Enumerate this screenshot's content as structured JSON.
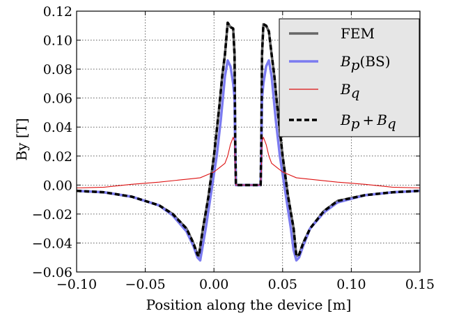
{
  "chart_data": {
    "type": "line",
    "xlabel": "Position along the device [m]",
    "ylabel": "By [T]",
    "xlim": [
      -0.1,
      0.15
    ],
    "ylim": [
      -0.06,
      0.12
    ],
    "x_ticks": [
      "−0.10",
      "−0.05",
      "0.00",
      "0.05",
      "0.10",
      "0.15"
    ],
    "y_ticks": [
      "−0.06",
      "−0.04",
      "−0.02",
      "0.00",
      "0.02",
      "0.04",
      "0.06",
      "0.08",
      "0.10",
      "0.12"
    ],
    "grid": true,
    "legend_position": "top-right",
    "legend": {
      "fem": "FEM",
      "bp_main": "B",
      "bp_sub": "p",
      "bp_suffix": "(BS)",
      "bq_main": "B",
      "bq_sub": "q",
      "sum_b1": "B",
      "sum_sub1": "p",
      "sum_plus": "+",
      "sum_b2": "B",
      "sum_sub2": "q"
    },
    "series": [
      {
        "key": "fem",
        "color": "#666666",
        "x": [
          -0.1,
          -0.08,
          -0.06,
          -0.04,
          -0.03,
          -0.02,
          -0.015,
          -0.012,
          -0.011,
          -0.008,
          -0.004,
          0.0,
          0.004,
          0.006,
          0.008,
          0.01,
          0.012,
          0.014,
          0.015,
          0.0155,
          0.016,
          0.034,
          0.0345,
          0.035,
          0.036,
          0.038,
          0.04,
          0.042,
          0.044,
          0.046,
          0.05,
          0.054,
          0.058,
          0.06,
          0.062,
          0.065,
          0.07,
          0.08,
          0.09,
          0.11,
          0.13,
          0.15
        ],
        "y": [
          -0.004,
          -0.005,
          -0.008,
          -0.014,
          -0.02,
          -0.03,
          -0.04,
          -0.048,
          -0.049,
          -0.03,
          -0.008,
          0.02,
          0.055,
          0.075,
          0.09,
          0.112,
          0.109,
          0.108,
          0.09,
          0.03,
          0.0,
          0.0,
          0.03,
          0.09,
          0.111,
          0.11,
          0.106,
          0.09,
          0.075,
          0.055,
          0.02,
          -0.008,
          -0.03,
          -0.049,
          -0.048,
          -0.04,
          -0.03,
          -0.018,
          -0.011,
          -0.007,
          -0.005,
          -0.004
        ]
      },
      {
        "key": "bp",
        "color": "#7b7bf0",
        "x": [
          -0.1,
          -0.08,
          -0.06,
          -0.04,
          -0.03,
          -0.02,
          -0.015,
          -0.012,
          -0.01,
          -0.006,
          -0.002,
          0.002,
          0.005,
          0.008,
          0.01,
          0.012,
          0.014,
          0.015,
          0.0155,
          0.016,
          0.034,
          0.0345,
          0.035,
          0.036,
          0.038,
          0.04,
          0.042,
          0.045,
          0.048,
          0.052,
          0.056,
          0.058,
          0.06,
          0.062,
          0.065,
          0.07,
          0.08,
          0.09,
          0.11,
          0.13,
          0.15
        ],
        "y": [
          -0.004,
          -0.005,
          -0.008,
          -0.014,
          -0.021,
          -0.032,
          -0.042,
          -0.05,
          -0.052,
          -0.03,
          -0.005,
          0.02,
          0.045,
          0.075,
          0.086,
          0.082,
          0.07,
          0.06,
          0.02,
          0.0,
          0.0,
          0.02,
          0.06,
          0.07,
          0.082,
          0.086,
          0.075,
          0.045,
          0.02,
          -0.005,
          -0.03,
          -0.045,
          -0.052,
          -0.05,
          -0.042,
          -0.03,
          -0.019,
          -0.012,
          -0.007,
          -0.005,
          -0.004
        ]
      },
      {
        "key": "bq",
        "color": "#dd1111",
        "x": [
          -0.1,
          -0.08,
          -0.06,
          -0.04,
          -0.02,
          -0.01,
          -0.005,
          0.0,
          0.004,
          0.008,
          0.01,
          0.012,
          0.014,
          0.015,
          0.0155,
          0.016,
          0.034,
          0.0345,
          0.035,
          0.036,
          0.038,
          0.04,
          0.042,
          0.046,
          0.05,
          0.055,
          0.06,
          0.07,
          0.09,
          0.11,
          0.13,
          0.15
        ],
        "y": [
          -0.002,
          -0.0015,
          0.0005,
          0.002,
          0.004,
          0.005,
          0.007,
          0.009,
          0.012,
          0.015,
          0.02,
          0.028,
          0.033,
          0.03,
          0.01,
          0.0,
          0.0,
          0.01,
          0.03,
          0.033,
          0.028,
          0.02,
          0.015,
          0.012,
          0.009,
          0.007,
          0.005,
          0.004,
          0.002,
          0.0005,
          -0.0015,
          -0.002
        ]
      },
      {
        "key": "sum",
        "color": "#000000",
        "x": [
          -0.1,
          -0.08,
          -0.06,
          -0.04,
          -0.03,
          -0.02,
          -0.015,
          -0.012,
          -0.011,
          -0.008,
          -0.004,
          0.0,
          0.004,
          0.006,
          0.008,
          0.01,
          0.012,
          0.014,
          0.015,
          0.0155,
          0.016,
          0.034,
          0.0345,
          0.035,
          0.036,
          0.038,
          0.04,
          0.042,
          0.044,
          0.046,
          0.05,
          0.054,
          0.058,
          0.06,
          0.062,
          0.065,
          0.07,
          0.08,
          0.09,
          0.11,
          0.13,
          0.15
        ],
        "y": [
          -0.004,
          -0.005,
          -0.008,
          -0.014,
          -0.02,
          -0.03,
          -0.04,
          -0.048,
          -0.049,
          -0.03,
          -0.008,
          0.02,
          0.055,
          0.075,
          0.09,
          0.112,
          0.109,
          0.108,
          0.09,
          0.03,
          0.0,
          0.0,
          0.03,
          0.09,
          0.111,
          0.11,
          0.106,
          0.09,
          0.075,
          0.055,
          0.02,
          -0.008,
          -0.03,
          -0.049,
          -0.048,
          -0.04,
          -0.03,
          -0.018,
          -0.011,
          -0.007,
          -0.005,
          -0.004
        ]
      }
    ]
  }
}
